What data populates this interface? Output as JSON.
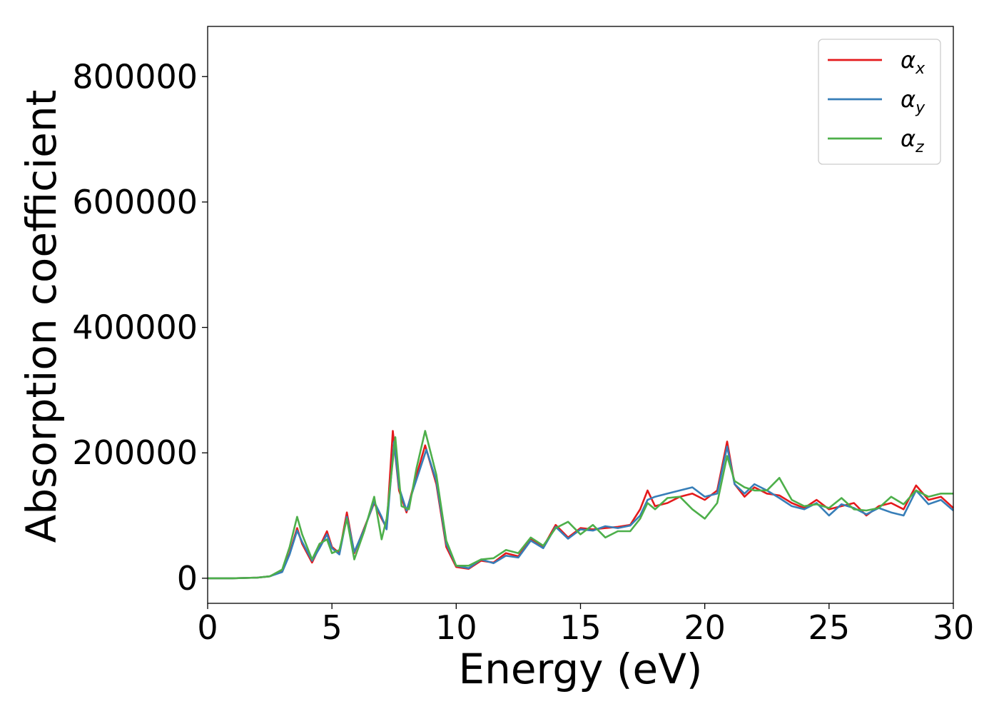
{
  "chart_data": {
    "type": "line",
    "title": "",
    "xlabel": "Energy (eV)",
    "ylabel": "Absorption coefficient",
    "xlim": [
      0,
      30
    ],
    "ylim": [
      -40000,
      880000
    ],
    "xticks": [
      0,
      5,
      10,
      15,
      20,
      25,
      30
    ],
    "yticks": [
      0,
      200000,
      400000,
      600000,
      800000
    ],
    "xtick_labels": [
      "0",
      "5",
      "10",
      "15",
      "20",
      "25",
      "30"
    ],
    "ytick_labels": [
      "0",
      "200000",
      "400000",
      "600000",
      "800000"
    ],
    "grid": false,
    "legend_position": "top-right",
    "series": [
      {
        "name": "α_x",
        "label_main": "α",
        "label_sub": "x",
        "color": "#e41a1c",
        "x": [
          0,
          1,
          2,
          2.5,
          3.0,
          3.3,
          3.6,
          3.8,
          4.2,
          4.5,
          4.8,
          5.0,
          5.3,
          5.6,
          5.9,
          6.3,
          6.7,
          7.0,
          7.2,
          7.45,
          7.7,
          8.0,
          8.3,
          8.75,
          9.2,
          9.6,
          10.0,
          10.5,
          11.0,
          11.5,
          12.0,
          12.5,
          13.0,
          13.5,
          14.0,
          14.5,
          15.0,
          15.5,
          16.0,
          16.5,
          17.0,
          17.4,
          17.7,
          18.0,
          18.5,
          19.0,
          19.5,
          20.0,
          20.5,
          20.9,
          21.2,
          21.6,
          22.0,
          22.5,
          23.0,
          23.5,
          24.0,
          24.5,
          25.0,
          25.5,
          26.0,
          26.5,
          27.0,
          27.5,
          28.0,
          28.5,
          29.0,
          29.5,
          30.0
        ],
        "y": [
          0,
          0,
          1000,
          3000,
          12000,
          40000,
          80000,
          55000,
          25000,
          50000,
          75000,
          50000,
          40000,
          105000,
          40000,
          80000,
          120000,
          95000,
          80000,
          235000,
          140000,
          105000,
          150000,
          212000,
          150000,
          50000,
          18000,
          15000,
          28000,
          25000,
          40000,
          35000,
          62000,
          50000,
          85000,
          65000,
          80000,
          78000,
          80000,
          82000,
          85000,
          110000,
          140000,
          115000,
          120000,
          130000,
          135000,
          125000,
          140000,
          218000,
          150000,
          130000,
          145000,
          135000,
          132000,
          120000,
          112000,
          125000,
          110000,
          115000,
          120000,
          100000,
          115000,
          120000,
          110000,
          148000,
          125000,
          130000,
          112000
        ]
      },
      {
        "name": "α_y",
        "label_main": "α",
        "label_sub": "y",
        "color": "#377eb8",
        "x": [
          0,
          1,
          2,
          2.5,
          3.0,
          3.3,
          3.6,
          3.8,
          4.2,
          4.5,
          4.8,
          5.0,
          5.3,
          5.6,
          5.9,
          6.3,
          6.7,
          7.0,
          7.2,
          7.5,
          7.7,
          8.0,
          8.3,
          8.8,
          9.2,
          9.6,
          10.0,
          10.5,
          11.0,
          11.5,
          12.0,
          12.5,
          13.0,
          13.5,
          14.0,
          14.5,
          15.0,
          15.5,
          16.0,
          16.5,
          17.0,
          17.4,
          17.7,
          18.0,
          18.5,
          19.0,
          19.5,
          20.0,
          20.5,
          20.9,
          21.2,
          21.6,
          22.0,
          22.5,
          23.0,
          23.5,
          24.0,
          24.5,
          25.0,
          25.5,
          26.0,
          26.5,
          27.0,
          27.5,
          28.0,
          28.5,
          29.0,
          29.5,
          30.0
        ],
        "y": [
          0,
          0,
          1000,
          3000,
          10000,
          38000,
          76000,
          58000,
          28000,
          48000,
          70000,
          48000,
          38000,
          98000,
          42000,
          78000,
          122000,
          98000,
          78000,
          218000,
          145000,
          108000,
          145000,
          205000,
          155000,
          55000,
          20000,
          16000,
          30000,
          24000,
          36000,
          33000,
          60000,
          48000,
          82000,
          63000,
          78000,
          76000,
          83000,
          80000,
          84000,
          100000,
          125000,
          130000,
          135000,
          140000,
          145000,
          130000,
          135000,
          210000,
          150000,
          135000,
          150000,
          140000,
          128000,
          115000,
          110000,
          120000,
          100000,
          118000,
          112000,
          102000,
          112000,
          105000,
          100000,
          140000,
          118000,
          125000,
          108000
        ]
      },
      {
        "name": "α_z",
        "label_main": "α",
        "label_sub": "z",
        "color": "#4daf4a",
        "x": [
          0,
          1,
          2,
          2.5,
          3.0,
          3.3,
          3.6,
          3.8,
          4.2,
          4.5,
          4.8,
          5.0,
          5.3,
          5.6,
          5.9,
          6.3,
          6.7,
          7.0,
          7.2,
          7.55,
          7.8,
          8.1,
          8.4,
          8.75,
          9.2,
          9.6,
          10.0,
          10.5,
          11.0,
          11.5,
          12.0,
          12.5,
          13.0,
          13.5,
          14.0,
          14.5,
          15.0,
          15.5,
          16.0,
          16.5,
          17.0,
          17.4,
          17.7,
          18.0,
          18.5,
          19.0,
          19.5,
          20.0,
          20.5,
          20.9,
          21.2,
          21.6,
          22.0,
          22.5,
          23.0,
          23.5,
          24.0,
          24.5,
          25.0,
          25.5,
          26.0,
          26.5,
          27.0,
          27.5,
          28.0,
          28.5,
          29.0,
          29.5,
          30.0
        ],
        "y": [
          0,
          0,
          1000,
          3000,
          14000,
          50000,
          98000,
          70000,
          30000,
          55000,
          62000,
          40000,
          45000,
          95000,
          30000,
          75000,
          130000,
          62000,
          95000,
          225000,
          115000,
          110000,
          175000,
          235000,
          165000,
          60000,
          20000,
          20000,
          30000,
          32000,
          45000,
          40000,
          65000,
          52000,
          80000,
          90000,
          70000,
          85000,
          65000,
          75000,
          75000,
          95000,
          120000,
          110000,
          128000,
          130000,
          110000,
          95000,
          120000,
          195000,
          155000,
          145000,
          140000,
          140000,
          160000,
          125000,
          115000,
          118000,
          112000,
          128000,
          110000,
          108000,
          112000,
          130000,
          118000,
          140000,
          130000,
          135000,
          135000
        ]
      }
    ]
  }
}
